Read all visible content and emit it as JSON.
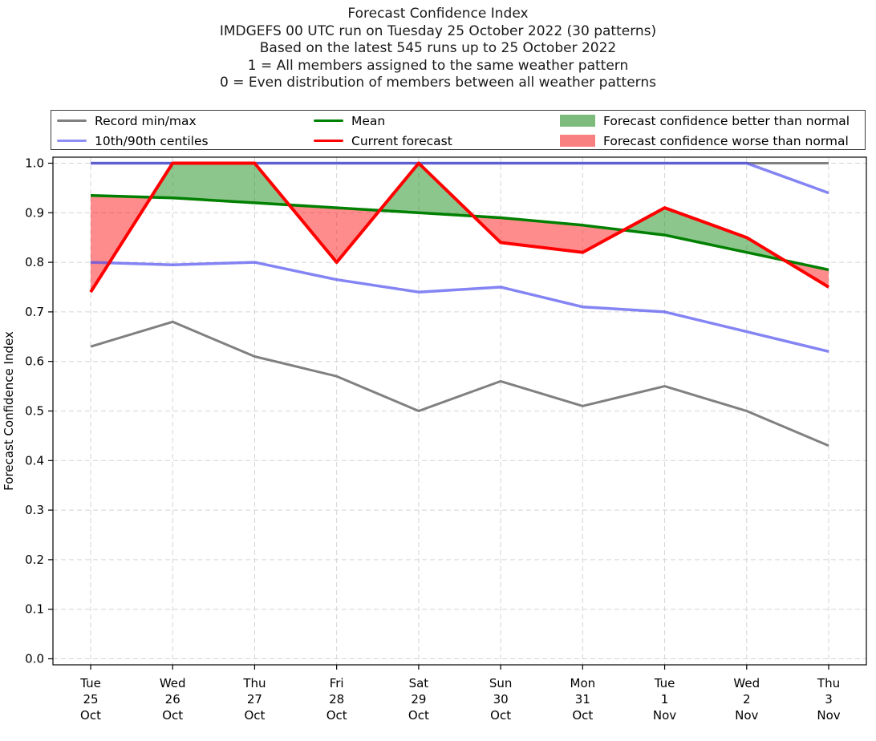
{
  "header": {
    "lines": [
      "Forecast Confidence Index",
      "IMDGEFS 00 UTC run on Tuesday 25 October 2022 (30 patterns)",
      "Based on the latest 545 runs up to 25 October 2022",
      "1 = All members assigned to the same weather pattern",
      "0 = Even distribution of members between all weather patterns"
    ]
  },
  "colors": {
    "record": "#808080",
    "centiles_line": "#5050f0",
    "centiles_legend": "#8e8ef5",
    "mean": "#008000",
    "current": "#ff0000",
    "better_patch": "#7cbb7c",
    "worse_patch": "#f98080",
    "grid": "#d4d4d4",
    "frame": "#000000"
  },
  "legend": {
    "items": [
      {
        "type": "line",
        "label": "Record min/max",
        "color_key": "record",
        "column": 0
      },
      {
        "type": "line",
        "label": "10th/90th centiles",
        "color_key": "centiles_legend",
        "column": 0
      },
      {
        "type": "line",
        "label": "Mean",
        "color_key": "mean",
        "column": 1
      },
      {
        "type": "line",
        "label": "Current forecast",
        "color_key": "current",
        "column": 1
      },
      {
        "type": "patch",
        "label": "Forecast confidence better than normal",
        "color_key": "better_patch",
        "column": 2
      },
      {
        "type": "patch",
        "label": "Forecast confidence worse than normal",
        "color_key": "worse_patch",
        "column": 2
      }
    ]
  },
  "chart_data": {
    "type": "line",
    "title": "Forecast Confidence Index",
    "xlabel": "",
    "ylabel": "Forecast Confidence Index",
    "ylim": [
      0.0,
      1.0
    ],
    "yticks": [
      "0.0",
      "0.1",
      "0.2",
      "0.3",
      "0.4",
      "0.5",
      "0.6",
      "0.7",
      "0.8",
      "0.9",
      "1.0"
    ],
    "grid": "dashed both axes",
    "legend_position": "top",
    "categories": [
      {
        "day": "Tue",
        "date": "25",
        "month": "Oct"
      },
      {
        "day": "Wed",
        "date": "26",
        "month": "Oct"
      },
      {
        "day": "Thu",
        "date": "27",
        "month": "Oct"
      },
      {
        "day": "Fri",
        "date": "28",
        "month": "Oct"
      },
      {
        "day": "Sat",
        "date": "29",
        "month": "Oct"
      },
      {
        "day": "Sun",
        "date": "30",
        "month": "Oct"
      },
      {
        "day": "Mon",
        "date": "31",
        "month": "Oct"
      },
      {
        "day": "Tue",
        "date": "1",
        "month": "Nov"
      },
      {
        "day": "Wed",
        "date": "2",
        "month": "Nov"
      },
      {
        "day": "Thu",
        "date": "3",
        "month": "Nov"
      }
    ],
    "series": [
      {
        "name": "Record max",
        "color": "#808080",
        "width": 3,
        "opacity": 1,
        "values": [
          1.0,
          1.0,
          1.0,
          1.0,
          1.0,
          1.0,
          1.0,
          1.0,
          1.0,
          1.0
        ]
      },
      {
        "name": "Record min",
        "color": "#808080",
        "width": 3,
        "opacity": 1,
        "values": [
          0.63,
          0.68,
          0.61,
          0.57,
          0.5,
          0.56,
          0.51,
          0.55,
          0.5,
          0.43
        ]
      },
      {
        "name": "90th centile",
        "color": "#5050f0",
        "width": 3.5,
        "opacity": 0.7,
        "values": [
          1.0,
          1.0,
          1.0,
          1.0,
          1.0,
          1.0,
          1.0,
          1.0,
          1.0,
          0.94
        ]
      },
      {
        "name": "10th centile",
        "color": "#5050f0",
        "width": 3.5,
        "opacity": 0.7,
        "values": [
          0.8,
          0.795,
          0.8,
          0.765,
          0.74,
          0.75,
          0.71,
          0.7,
          0.66,
          0.62
        ]
      },
      {
        "name": "Mean",
        "color": "#008000",
        "width": 3.5,
        "opacity": 1,
        "values": [
          0.935,
          0.93,
          0.92,
          0.91,
          0.9,
          0.89,
          0.875,
          0.855,
          0.82,
          0.785
        ]
      },
      {
        "name": "Current forecast",
        "color": "#ff0000",
        "width": 4,
        "opacity": 1,
        "values": [
          0.74,
          1.0,
          1.0,
          0.8,
          1.0,
          0.84,
          0.82,
          0.91,
          0.85,
          0.75
        ]
      }
    ],
    "fills": {
      "between": [
        "Current forecast",
        "Mean"
      ],
      "better": {
        "color": "#008000",
        "opacity": 0.45
      },
      "worse": {
        "color": "#ff0000",
        "opacity": 0.45
      }
    }
  }
}
